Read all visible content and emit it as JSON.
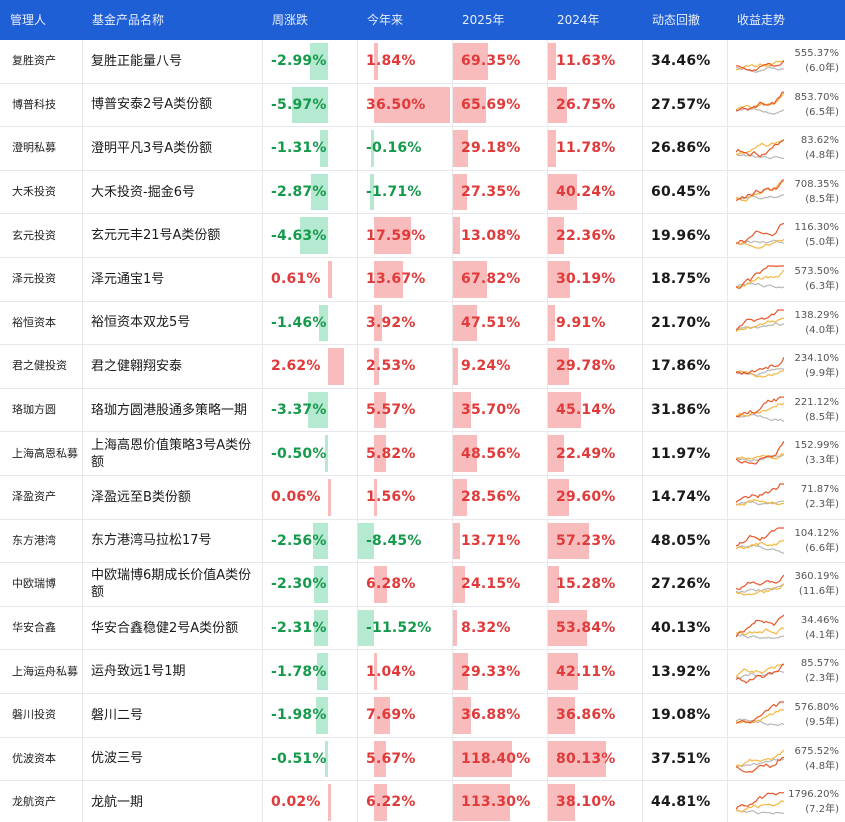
{
  "columns": [
    "管理人",
    "基金产品名称",
    "周涨跌",
    "今年来",
    "2025年",
    "2024年",
    "动态回撤",
    "收益走势"
  ],
  "colors": {
    "header_bg": "#1f5fd6",
    "up": "#e03a3a",
    "down": "#159a4b",
    "bar_up": "#f9bcbc",
    "bar_down": "#b6e9d2",
    "line_fund": "#e8562a",
    "line_index": "#f5b840",
    "line_bench": "#b8b8b8"
  },
  "icons": {
    "trend": "sparkline-chart-icon"
  },
  "rows": [
    {
      "manager": "复胜资产",
      "product": "复胜正能量八号",
      "week": "-2.99%",
      "week_num": -2.99,
      "ytd": "1.84%",
      "ytd_num": 1.84,
      "y2025": "69.35%",
      "y2025_num": 69.35,
      "y2024": "11.63%",
      "y2024_num": 11.63,
      "drawdown": "34.46%",
      "total": "555.37%",
      "years": "(6.0年)"
    },
    {
      "manager": "博普科技",
      "product": "博普安泰2号A类份额",
      "week": "-5.97%",
      "week_num": -5.97,
      "ytd": "36.50%",
      "ytd_num": 36.5,
      "y2025": "65.69%",
      "y2025_num": 65.69,
      "y2024": "26.75%",
      "y2024_num": 26.75,
      "drawdown": "27.57%",
      "total": "853.70%",
      "years": "(6.5年)"
    },
    {
      "manager": "澄明私募",
      "product": "澄明平凡3号A类份额",
      "week": "-1.31%",
      "week_num": -1.31,
      "ytd": "-0.16%",
      "ytd_num": -0.16,
      "y2025": "29.18%",
      "y2025_num": 29.18,
      "y2024": "11.78%",
      "y2024_num": 11.78,
      "drawdown": "26.86%",
      "total": "83.62%",
      "years": "(4.8年)"
    },
    {
      "manager": "大禾投资",
      "product": "大禾投资-掘金6号",
      "week": "-2.87%",
      "week_num": -2.87,
      "ytd": "-1.71%",
      "ytd_num": -1.71,
      "y2025": "27.35%",
      "y2025_num": 27.35,
      "y2024": "40.24%",
      "y2024_num": 40.24,
      "drawdown": "60.45%",
      "total": "708.35%",
      "years": "(8.5年)"
    },
    {
      "manager": "玄元投资",
      "product": "玄元元丰21号A类份额",
      "week": "-4.63%",
      "week_num": -4.63,
      "ytd": "17.59%",
      "ytd_num": 17.59,
      "y2025": "13.08%",
      "y2025_num": 13.08,
      "y2024": "22.36%",
      "y2024_num": 22.36,
      "drawdown": "19.96%",
      "total": "116.30%",
      "years": "(5.0年)"
    },
    {
      "manager": "泽元投资",
      "product": "泽元通宝1号",
      "week": "0.61%",
      "week_num": 0.61,
      "ytd": "13.67%",
      "ytd_num": 13.67,
      "y2025": "67.82%",
      "y2025_num": 67.82,
      "y2024": "30.19%",
      "y2024_num": 30.19,
      "drawdown": "18.75%",
      "total": "573.50%",
      "years": "(6.3年)"
    },
    {
      "manager": "裕恒资本",
      "product": "裕恒资本双龙5号",
      "week": "-1.46%",
      "week_num": -1.46,
      "ytd": "3.92%",
      "ytd_num": 3.92,
      "y2025": "47.51%",
      "y2025_num": 47.51,
      "y2024": "9.91%",
      "y2024_num": 9.91,
      "drawdown": "21.70%",
      "total": "138.29%",
      "years": "(4.0年)"
    },
    {
      "manager": "君之健投资",
      "product": "君之健翱翔安泰",
      "week": "2.62%",
      "week_num": 2.62,
      "ytd": "2.53%",
      "ytd_num": 2.53,
      "y2025": "9.24%",
      "y2025_num": 9.24,
      "y2024": "29.78%",
      "y2024_num": 29.78,
      "drawdown": "17.86%",
      "total": "234.10%",
      "years": "(9.9年)"
    },
    {
      "manager": "珞珈方圆",
      "product": "珞珈方圆港股通多策略一期",
      "week": "-3.37%",
      "week_num": -3.37,
      "ytd": "5.57%",
      "ytd_num": 5.57,
      "y2025": "35.70%",
      "y2025_num": 35.7,
      "y2024": "45.14%",
      "y2024_num": 45.14,
      "drawdown": "31.86%",
      "total": "221.12%",
      "years": "(8.5年)"
    },
    {
      "manager": "上海高恩私募",
      "product": "上海高恩价值策略3号A类份额",
      "week": "-0.50%",
      "week_num": -0.5,
      "ytd": "5.82%",
      "ytd_num": 5.82,
      "y2025": "48.56%",
      "y2025_num": 48.56,
      "y2024": "22.49%",
      "y2024_num": 22.49,
      "drawdown": "11.97%",
      "total": "152.99%",
      "years": "(3.3年)"
    },
    {
      "manager": "泽盈资产",
      "product": "泽盈远至B类份额",
      "week": "0.06%",
      "week_num": 0.06,
      "ytd": "1.56%",
      "ytd_num": 1.56,
      "y2025": "28.56%",
      "y2025_num": 28.56,
      "y2024": "29.60%",
      "y2024_num": 29.6,
      "drawdown": "14.74%",
      "total": "71.87%",
      "years": "(2.3年)"
    },
    {
      "manager": "东方港湾",
      "product": "东方港湾马拉松17号",
      "week": "-2.56%",
      "week_num": -2.56,
      "ytd": "-8.45%",
      "ytd_num": -8.45,
      "y2025": "13.71%",
      "y2025_num": 13.71,
      "y2024": "57.23%",
      "y2024_num": 57.23,
      "drawdown": "48.05%",
      "total": "104.12%",
      "years": "(6.6年)"
    },
    {
      "manager": "中欧瑞博",
      "product": "中欧瑞博6期成长价值A类份额",
      "week": "-2.30%",
      "week_num": -2.3,
      "ytd": "6.28%",
      "ytd_num": 6.28,
      "y2025": "24.15%",
      "y2025_num": 24.15,
      "y2024": "15.28%",
      "y2024_num": 15.28,
      "drawdown": "27.26%",
      "total": "360.19%",
      "years": "(11.6年)"
    },
    {
      "manager": "华安合鑫",
      "product": "华安合鑫稳健2号A类份额",
      "week": "-2.31%",
      "week_num": -2.31,
      "ytd": "-11.52%",
      "ytd_num": -11.52,
      "y2025": "8.32%",
      "y2025_num": 8.32,
      "y2024": "53.84%",
      "y2024_num": 53.84,
      "drawdown": "40.13%",
      "total": "34.46%",
      "years": "(4.1年)"
    },
    {
      "manager": "上海运舟私募",
      "product": "运舟致远1号1期",
      "week": "-1.78%",
      "week_num": -1.78,
      "ytd": "1.04%",
      "ytd_num": 1.04,
      "y2025": "29.33%",
      "y2025_num": 29.33,
      "y2024": "42.11%",
      "y2024_num": 42.11,
      "drawdown": "13.92%",
      "total": "85.57%",
      "years": "(2.3年)"
    },
    {
      "manager": "磐川投资",
      "product": "磐川二号",
      "week": "-1.98%",
      "week_num": -1.98,
      "ytd": "7.69%",
      "ytd_num": 7.69,
      "y2025": "36.88%",
      "y2025_num": 36.88,
      "y2024": "36.86%",
      "y2024_num": 36.86,
      "drawdown": "19.08%",
      "total": "576.80%",
      "years": "(9.5年)"
    },
    {
      "manager": "优波资本",
      "product": "优波三号",
      "week": "-0.51%",
      "week_num": -0.51,
      "ytd": "5.67%",
      "ytd_num": 5.67,
      "y2025": "118.40%",
      "y2025_num": 118.4,
      "y2024": "80.13%",
      "y2024_num": 80.13,
      "drawdown": "37.51%",
      "total": "675.52%",
      "years": "(4.8年)"
    },
    {
      "manager": "龙航资产",
      "product": "龙航一期",
      "week": "0.02%",
      "week_num": 0.02,
      "ytd": "6.22%",
      "ytd_num": 6.22,
      "y2025": "113.30%",
      "y2025_num": 113.3,
      "y2024": "38.10%",
      "y2024_num": 38.1,
      "drawdown": "44.81%",
      "total": "1796.20%",
      "years": "(7.2年)"
    }
  ]
}
